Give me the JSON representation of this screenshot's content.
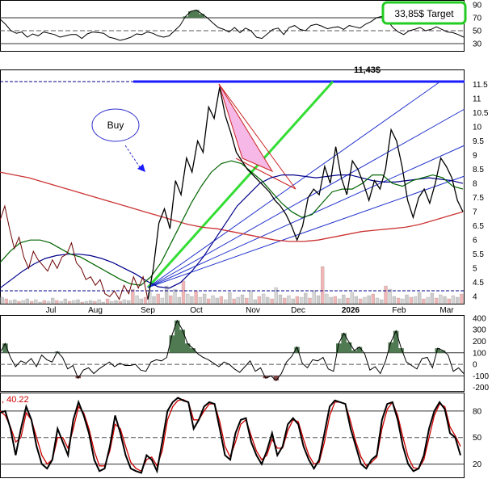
{
  "chart_data": [
    {
      "type": "line",
      "panel": "rsi",
      "yticks": [
        90,
        70,
        50,
        30
      ],
      "ylim": [
        20,
        95
      ],
      "reference_lines": [
        70,
        50,
        30
      ],
      "series": [
        {
          "values": [
            68,
            60,
            50,
            46,
            48,
            40,
            45,
            42,
            48,
            46,
            44,
            40,
            42,
            44,
            44,
            38,
            45,
            48,
            47,
            46,
            40,
            38,
            35,
            37,
            40,
            45,
            44,
            48,
            46,
            42,
            40,
            42,
            50,
            58,
            72,
            80,
            82,
            76,
            70,
            62,
            55,
            52,
            48,
            55,
            47,
            54,
            50,
            40,
            38,
            45,
            52,
            54,
            44,
            55,
            58,
            52,
            50,
            58,
            60,
            57,
            53,
            55,
            56,
            52,
            58,
            56,
            54,
            60,
            64,
            70,
            72,
            66,
            55,
            48,
            44,
            50,
            52,
            55,
            50,
            52,
            56,
            52,
            48,
            47,
            44,
            40
          ]
        }
      ],
      "target_label": "33,85$ Target"
    },
    {
      "type": "line",
      "panel": "price",
      "xlabels": [
        "Jul",
        "Aug",
        "Sep",
        "Oct",
        "Nov",
        "Dec",
        "2026",
        "Feb",
        "Mar"
      ],
      "yticks": [
        11.5,
        11.0,
        10.5,
        10.0,
        9.5,
        9.0,
        8.5,
        8.0,
        7.5,
        7.0,
        6.5,
        6.0,
        5.5,
        5.0,
        4.5,
        4.0
      ],
      "ylim": [
        3.75,
        12.0
      ],
      "resistance": 11.43,
      "resistance_label": "11,43$",
      "annotation": "Buy",
      "series": [
        {
          "color": "#8b0000",
          "values": [
            6.7,
            7.2,
            6.4,
            5.7,
            6.1,
            5.4,
            5.0,
            5.6,
            5.3,
            5.1,
            4.9,
            5.3,
            5.0,
            5.4,
            5.5,
            5.9,
            5.2,
            5.0,
            4.6,
            4.7,
            4.4,
            4.6,
            4.1,
            4.0,
            4.2,
            3.9,
            4.4,
            4.1,
            4.7,
            4.3,
            4.7,
            3.9,
            5.0,
            6.6,
            7.1,
            6.4,
            8.1,
            7.6,
            8.9,
            8.4,
            9.5,
            9.1,
            10.7,
            10.3,
            11.4,
            10.4,
            9.8,
            9.1,
            8.8,
            8.5,
            8.3,
            8.1,
            7.9,
            7.7,
            7.4,
            7.2,
            6.9,
            6.5,
            6.0,
            6.5,
            7.5,
            7.8,
            7.6,
            8.6,
            8.0,
            9.3,
            8.2,
            7.6,
            8.8,
            8.5,
            8.0,
            7.4,
            8.1,
            7.8,
            8.5,
            9.9,
            9.5,
            8.6,
            7.4,
            6.8,
            7.5,
            7.8,
            7.3,
            8.0,
            8.9,
            8.6,
            8.2,
            7.4,
            7.0
          ]
        },
        {
          "color": "#006400",
          "values": [
            5.2,
            5.6,
            5.9,
            6.0,
            6.0,
            5.9,
            5.7,
            5.5,
            5.4,
            5.2,
            5.0,
            4.8,
            4.6,
            4.45,
            4.4,
            4.7,
            5.2,
            5.9,
            6.6,
            7.3,
            7.9,
            8.4,
            8.7,
            8.8,
            8.7,
            8.4,
            8.1,
            7.7,
            7.3,
            7.0,
            6.8,
            6.9,
            7.3,
            7.7,
            7.8,
            7.8,
            8.0,
            8.3,
            8.3,
            8.0,
            7.9,
            8.1,
            8.2,
            8.3,
            8.2,
            7.9,
            7.8
          ]
        },
        {
          "color": "#00008b",
          "values": [
            4.3,
            4.6,
            4.9,
            5.15,
            5.35,
            5.45,
            5.5,
            5.5,
            5.45,
            5.35,
            5.2,
            5.0,
            4.8,
            4.55,
            4.35,
            4.3,
            4.5,
            4.9,
            5.4,
            6.0,
            6.6,
            7.2,
            7.6,
            8.0,
            8.2,
            8.3,
            8.3,
            8.25,
            8.2,
            8.25,
            8.3,
            8.3,
            8.2,
            8.1,
            8.05,
            8.05,
            8.1,
            8.15,
            8.2,
            8.15,
            8.1,
            8.0
          ]
        },
        {
          "color": "#cc0000",
          "values": [
            8.4,
            8.3,
            8.2,
            8.05,
            7.9,
            7.75,
            7.6,
            7.45,
            7.3,
            7.15,
            7.0,
            6.85,
            6.7,
            6.55,
            6.45,
            6.4,
            6.3,
            6.2,
            6.1,
            6.0,
            5.95,
            5.95,
            6.0,
            6.1,
            6.2,
            6.3,
            6.35,
            6.4,
            6.45,
            6.55,
            6.7,
            6.85,
            7.0
          ]
        }
      ]
    },
    {
      "type": "line",
      "panel": "cci",
      "yticks": [
        400,
        300,
        200,
        100,
        0,
        -100,
        -200
      ],
      "ylim": [
        -230,
        420
      ],
      "reference_lines": [
        100,
        0,
        -100
      ],
      "series": [
        {
          "values": [
            100,
            180,
            60,
            -20,
            30,
            10,
            50,
            -20,
            80,
            40,
            20,
            110,
            60,
            -40,
            -10,
            -120,
            -50,
            -30,
            -80,
            -40,
            -10,
            20,
            -20,
            10,
            -10,
            -10,
            0,
            -50,
            -60,
            20,
            40,
            30,
            60,
            250,
            380,
            300,
            180,
            140,
            90,
            60,
            40,
            10,
            -20,
            20,
            0,
            -40,
            -70,
            -20,
            30,
            -60,
            -30,
            -120,
            -100,
            -140,
            -80,
            20,
            70,
            150,
            10,
            -30,
            40,
            30,
            60,
            -40,
            -60,
            180,
            270,
            190,
            120,
            150,
            90,
            -50,
            -20,
            -80,
            30,
            190,
            290,
            140,
            20,
            -10,
            -40,
            50,
            60,
            -30,
            140,
            120,
            80,
            -60,
            -30,
            -80
          ]
        }
      ]
    },
    {
      "type": "line",
      "panel": "stochastic",
      "title": ", 40.22",
      "yticks": [
        80,
        50,
        20
      ],
      "ylim": [
        5,
        100
      ],
      "reference_lines": [
        80,
        50,
        20
      ],
      "series": [
        {
          "color": "#000000",
          "values": [
            78,
            80,
            60,
            30,
            60,
            85,
            70,
            40,
            20,
            15,
            25,
            60,
            45,
            30,
            70,
            90,
            75,
            55,
            25,
            12,
            15,
            40,
            75,
            55,
            30,
            15,
            12,
            10,
            30,
            25,
            12,
            45,
            80,
            90,
            95,
            92,
            90,
            60,
            70,
            85,
            90,
            88,
            60,
            30,
            25,
            55,
            70,
            72,
            45,
            30,
            20,
            35,
            55,
            30,
            40,
            65,
            72,
            65,
            40,
            25,
            15,
            25,
            55,
            85,
            92,
            90,
            88,
            60,
            40,
            20,
            15,
            25,
            30,
            70,
            88,
            90,
            70,
            40,
            20,
            12,
            15,
            30,
            60,
            80,
            90,
            82,
            55,
            50,
            30
          ]
        },
        {
          "color": "#cc0000",
          "values": [
            80,
            75,
            62,
            45,
            50,
            78,
            70,
            50,
            30,
            20,
            25,
            50,
            50,
            38,
            60,
            85,
            78,
            60,
            35,
            18,
            18,
            35,
            65,
            60,
            40,
            22,
            15,
            12,
            25,
            28,
            18,
            35,
            70,
            85,
            92,
            93,
            90,
            70,
            70,
            80,
            88,
            88,
            68,
            40,
            28,
            45,
            65,
            70,
            52,
            35,
            25,
            30,
            48,
            38,
            38,
            58,
            70,
            68,
            48,
            30,
            20,
            22,
            45,
            75,
            90,
            90,
            88,
            68,
            45,
            28,
            18,
            22,
            28,
            60,
            82,
            90,
            75,
            50,
            28,
            16,
            15,
            25,
            50,
            75,
            88,
            85,
            62,
            52,
            40
          ]
        }
      ]
    }
  ]
}
